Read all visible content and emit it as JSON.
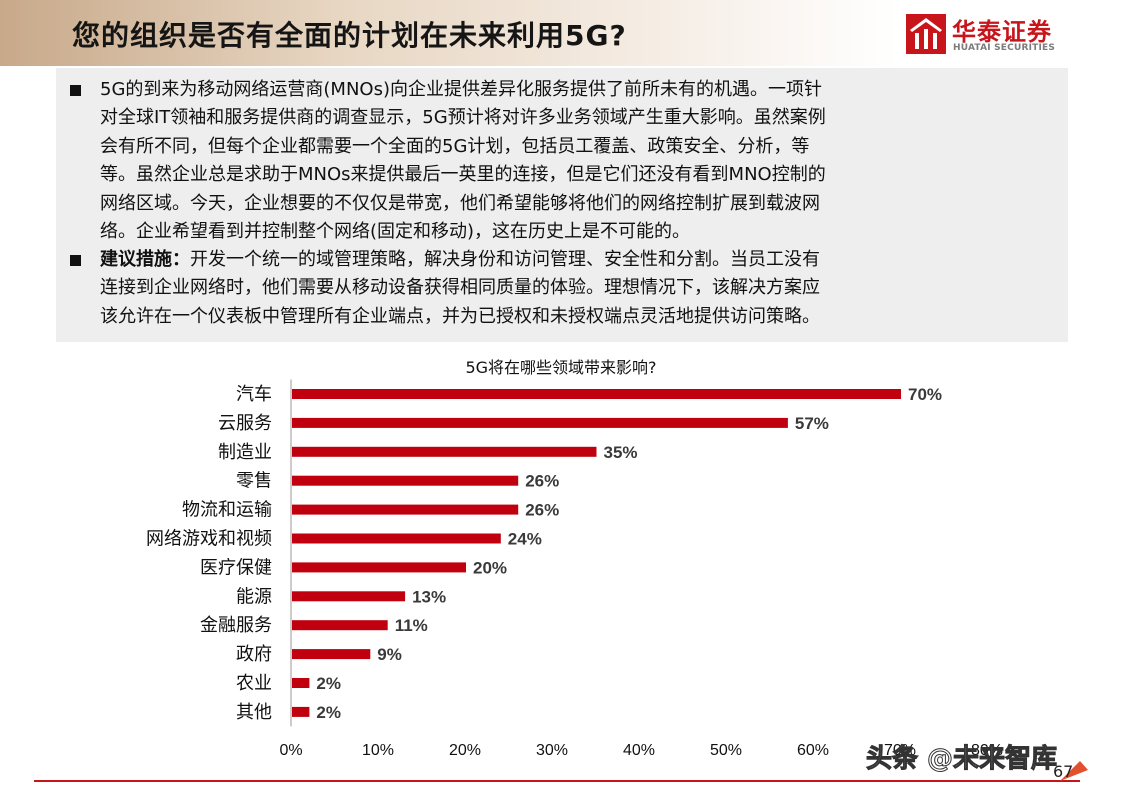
{
  "header": {
    "title": "您的组织是否有全面的计划在未来利用5G?",
    "logo_cn": "华泰证券",
    "logo_en": "HUATAI SECURITIES"
  },
  "textbox": {
    "para1_lines": [
      "5G的到来为移动网络运营商(MNOs)向企业提供差异化服务提供了前所未有的机遇。一项针",
      "对全球IT领袖和服务提供商的调查显示，5G预计将对许多业务领域产生重大影响。虽然案例",
      "会有所不同，但每个企业都需要一个全面的5G计划，包括员工覆盖、政策安全、分析，等",
      "等。虽然企业总是求助于MNOs来提供最后一英里的连接，但是它们还没有看到MNO控制的",
      "网络区域。今天，企业想要的不仅仅是带宽，他们希望能够将他们的网络控制扩展到载波网",
      "络。企业希望看到并控制整个网络(固定和移动)，这在历史上是不可能的。"
    ],
    "para2_label": "建议措施：",
    "para2_first_rest": "开发一个统一的域管理策略，解决身份和访问管理、安全性和分割。当员工没有",
    "para2_lines": [
      "连接到企业网络时，他们需要从移动设备获得相同质量的体验。理想情况下，该解决方案应",
      "该允许在一个仪表板中管理所有企业端点，并为已授权和未授权端点灵活地提供访问策略。"
    ]
  },
  "chart_data": {
    "type": "bar",
    "orientation": "horizontal",
    "title": "5G将在哪些领域带来影响?",
    "categories": [
      "汽车",
      "云服务",
      "制造业",
      "零售",
      "物流和运输",
      "网络游戏和视频",
      "医疗保健",
      "能源",
      "金融服务",
      "政府",
      "农业",
      "其他"
    ],
    "values": [
      70,
      57,
      35,
      26,
      26,
      24,
      20,
      13,
      11,
      9,
      2,
      2
    ],
    "value_labels": [
      "70%",
      "57%",
      "35%",
      "26%",
      "26%",
      "24%",
      "20%",
      "13%",
      "11%",
      "9%",
      "2%",
      "2%"
    ],
    "x_ticks": [
      "0%",
      "10%",
      "20%",
      "30%",
      "40%",
      "50%",
      "60%",
      "70%",
      "80%"
    ],
    "xlim": [
      0,
      80
    ],
    "bar_color": "#c0000f",
    "grid": false
  },
  "footer": {
    "page_number": "67",
    "watermark": "头条 @未来智库"
  }
}
